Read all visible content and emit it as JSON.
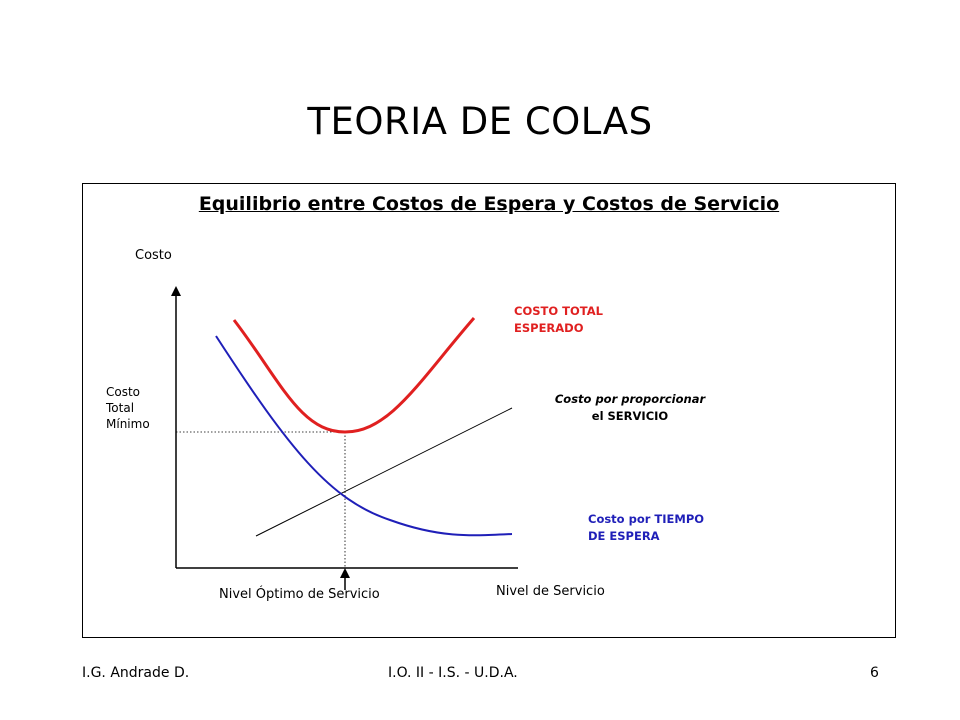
{
  "slide": {
    "title": "TEORIA DE COLAS"
  },
  "diagram": {
    "title": "Equilibrio entre Costos de Espera y Costos de Servicio",
    "y_axis_label": "Costo",
    "x_axis_label": "Nivel de Servicio",
    "min_cost_label": [
      "Costo",
      "Total",
      "Mínimo"
    ],
    "optimal_label": "Nivel Óptimo de Servicio",
    "curves": {
      "total": {
        "label": [
          "COSTO TOTAL",
          "ESPERADO"
        ],
        "color": "#e02020"
      },
      "service": {
        "label": [
          "Costo por proporcionar",
          "el SERVICIO"
        ],
        "color": "#000000"
      },
      "waiting": {
        "label": [
          "Costo por TIEMPO",
          "DE ESPERA"
        ],
        "color": "#1f1fb8"
      }
    }
  },
  "footer": {
    "left": "I.G. Andrade D.",
    "center": "I.O. II - I.S. - U.D.A.",
    "page": "6"
  }
}
